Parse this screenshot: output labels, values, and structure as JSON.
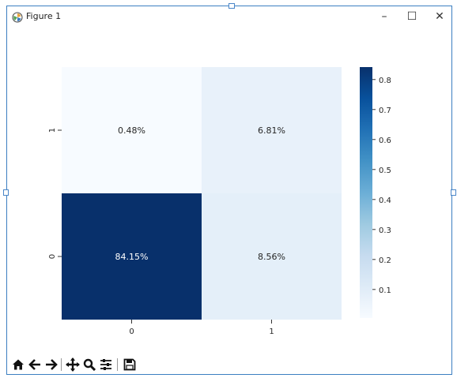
{
  "window": {
    "title": "Figure 1",
    "minimize_glyph": "–",
    "maximize_glyph": "☐",
    "close_glyph": "✕"
  },
  "toolbar": {
    "items": [
      "home-icon",
      "back-arrow-icon",
      "forward-arrow-icon",
      "pan-icon",
      "zoom-icon",
      "subplots-icon",
      "save-icon"
    ]
  },
  "chart_data": {
    "type": "heatmap",
    "x_ticks": [
      "0",
      "1"
    ],
    "y_ticks": [
      "0",
      "1"
    ],
    "cells": [
      {
        "row": "1",
        "col": "0",
        "value": 0.0048,
        "label": "0.48%"
      },
      {
        "row": "1",
        "col": "1",
        "value": 0.0681,
        "label": "6.81%"
      },
      {
        "row": "0",
        "col": "0",
        "value": 0.8415,
        "label": "84.15%"
      },
      {
        "row": "0",
        "col": "1",
        "value": 0.0856,
        "label": "8.56%"
      }
    ],
    "colormap": "Blues",
    "colorbar": {
      "ticks": [
        "0.1",
        "0.2",
        "0.3",
        "0.4",
        "0.5",
        "0.6",
        "0.7",
        "0.8"
      ],
      "range": [
        0.0048,
        0.8415
      ]
    }
  }
}
